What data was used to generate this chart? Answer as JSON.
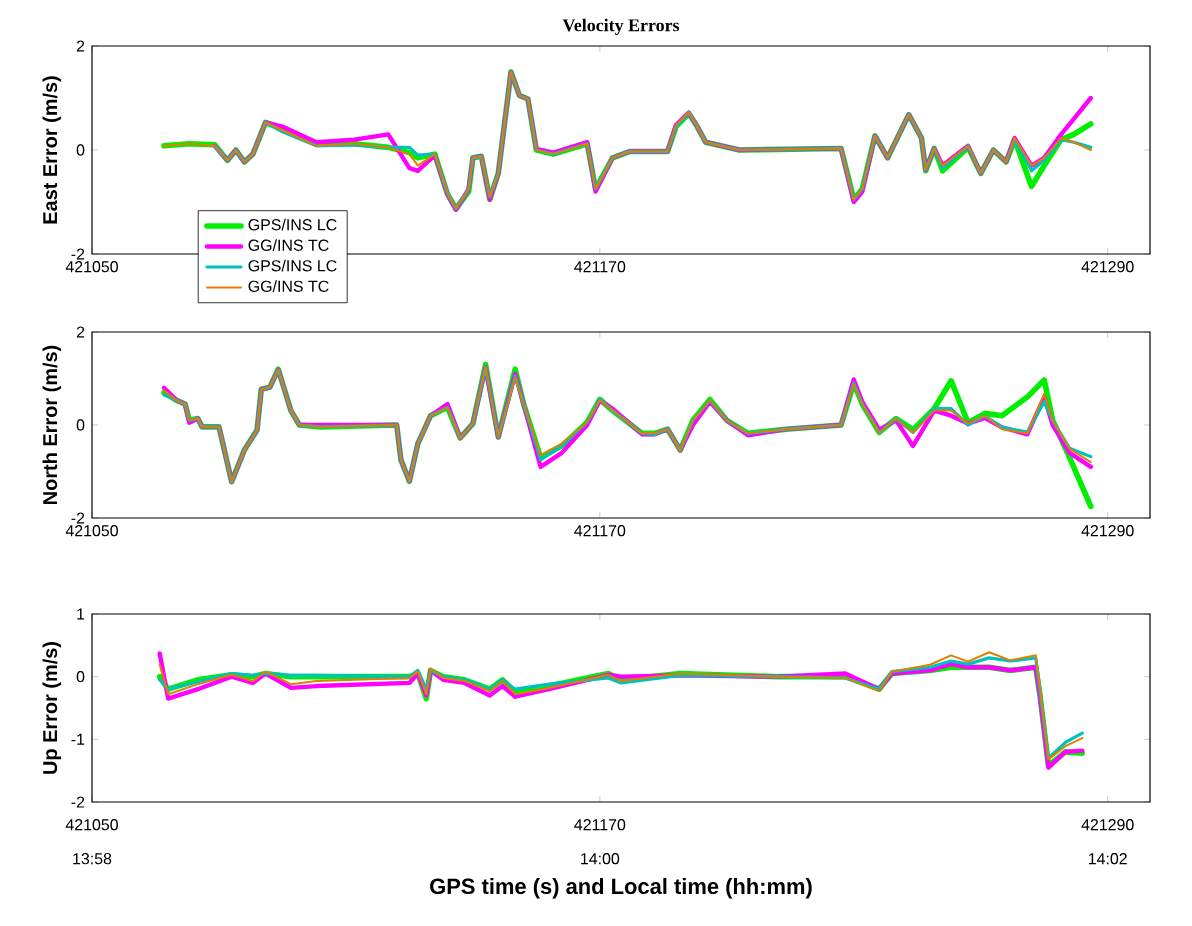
{
  "chart_data": [
    {
      "type": "line",
      "title": "Velocity Errors",
      "ylabel": "East Error (m/s)",
      "xlim": [
        421050,
        421300
      ],
      "ylim": [
        -2,
        2
      ],
      "xticks": [
        421050,
        421170,
        421290
      ],
      "yticks": [
        -2,
        0,
        2
      ],
      "legend": "bottom left",
      "x": [
        421067,
        421073,
        421079,
        421082,
        421084,
        421086,
        421088,
        421091,
        421095,
        421103,
        421112,
        421120,
        421125,
        421127,
        421131,
        421134,
        421136,
        421139,
        421140,
        421142,
        421144,
        421146,
        421149,
        421151,
        421153,
        421155,
        421159,
        421167,
        421169,
        421173,
        421177,
        421186,
        421188,
        421191,
        421193,
        421195,
        421203,
        421227,
        421230,
        421232,
        421235,
        421238,
        421243,
        421246,
        421247,
        421249,
        421251,
        421257,
        421260,
        421263,
        421266,
        421268,
        421272,
        421275,
        421279,
        421282,
        421286
      ],
      "series": [
        {
          "name": "GPS/INS LC",
          "color": "#00ee00",
          "values": [
            0.08,
            0.12,
            0.1,
            -0.2,
            0,
            -0.23,
            -0.08,
            0.53,
            0.4,
            0.12,
            0.12,
            0.05,
            -0.05,
            -0.15,
            -0.08,
            -0.85,
            -1.13,
            -0.8,
            -0.15,
            -0.12,
            -0.95,
            -0.45,
            1.5,
            1.05,
            0.98,
            0,
            -0.08,
            0.12,
            -0.75,
            -0.15,
            -0.03,
            -0.03,
            0.45,
            0.7,
            0.45,
            0.15,
            0,
            0.03,
            -0.95,
            -0.75,
            0.27,
            -0.15,
            0.68,
            0.23,
            -0.4,
            0.03,
            -0.4,
            0.05,
            -0.45,
            0,
            -0.23,
            0.2,
            -0.7,
            -0.3,
            0.2,
            0.3,
            0.5
          ]
        },
        {
          "name": "GG/INS TC",
          "color": "#ff00ff",
          "values": [
            null,
            null,
            0.08,
            -0.2,
            0,
            -0.23,
            -0.08,
            0.53,
            0.45,
            0.15,
            0.2,
            0.3,
            -0.35,
            -0.4,
            -0.1,
            -0.85,
            -1.15,
            -0.75,
            -0.15,
            -0.12,
            -0.95,
            -0.45,
            1.5,
            1.05,
            0.98,
            0.02,
            -0.05,
            0.15,
            -0.8,
            -0.15,
            -0.03,
            -0.03,
            0.48,
            0.72,
            0.45,
            0.15,
            0,
            0.03,
            -1.0,
            -0.8,
            0.27,
            -0.15,
            0.68,
            0.23,
            -0.38,
            0.03,
            -0.3,
            0.08,
            -0.45,
            0,
            -0.23,
            0.23,
            -0.3,
            -0.15,
            0.3,
            0.6,
            1.0
          ]
        },
        {
          "name": "GPS/INS LC",
          "color": "#00c0c0",
          "values": [
            null,
            null,
            0.08,
            -0.2,
            0,
            -0.23,
            -0.08,
            0.53,
            0.35,
            0.08,
            0.1,
            0.05,
            0.05,
            -0.1,
            -0.08,
            -0.83,
            -1.13,
            -0.75,
            -0.15,
            -0.12,
            -0.9,
            -0.45,
            1.5,
            1.05,
            0.98,
            0,
            -0.08,
            0.12,
            -0.75,
            -0.15,
            -0.03,
            -0.03,
            0.45,
            0.72,
            0.45,
            0.15,
            0,
            0.03,
            -0.95,
            -0.75,
            0.27,
            -0.15,
            0.68,
            0.23,
            -0.38,
            0.03,
            -0.35,
            0.08,
            -0.45,
            0,
            -0.23,
            0.2,
            -0.4,
            -0.2,
            0.2,
            0.15,
            0.05
          ]
        },
        {
          "name": "GG/INS TC",
          "color": "#e08000",
          "values": [
            0.08,
            0.12,
            0.08,
            -0.2,
            0,
            -0.23,
            -0.08,
            0.53,
            0.38,
            0.08,
            0.12,
            0.05,
            -0.08,
            -0.3,
            -0.08,
            -0.83,
            -1.13,
            -0.75,
            -0.15,
            -0.12,
            -0.9,
            -0.45,
            1.5,
            1.05,
            0.98,
            0,
            -0.08,
            0.12,
            -0.75,
            -0.15,
            -0.03,
            -0.03,
            0.48,
            0.72,
            0.45,
            0.15,
            0,
            0.03,
            -0.95,
            -0.75,
            0.27,
            -0.15,
            0.68,
            0.23,
            -0.38,
            0.03,
            -0.3,
            0.08,
            -0.45,
            0,
            -0.23,
            0.23,
            -0.3,
            -0.15,
            0.23,
            0.15,
            0
          ]
        }
      ]
    },
    {
      "type": "line",
      "ylabel": "North Error (m/s)",
      "xlim": [
        421050,
        421300
      ],
      "ylim": [
        -2,
        2
      ],
      "xticks": [
        421050,
        421170,
        421290
      ],
      "yticks": [
        -2,
        0,
        2
      ],
      "x": [
        421067,
        421070,
        421072,
        421073,
        421075,
        421076,
        421080,
        421083,
        421086,
        421089,
        421090,
        421092,
        421094,
        421097,
        421099,
        421104,
        421122,
        421123,
        421125,
        421127,
        421130,
        421134,
        421137,
        421140,
        421143,
        421146,
        421150,
        421152,
        421156,
        421161,
        421167,
        421170,
        421173,
        421180,
        421183,
        421186,
        421189,
        421192,
        421196,
        421200,
        421205,
        421214,
        421227,
        421230,
        421232,
        421236,
        421240,
        421244,
        421249,
        421253,
        421257,
        421261,
        421265,
        421271,
        421275,
        421277,
        421281,
        421286
      ],
      "series": [
        {
          "color": "#00ee00",
          "values": [
            0.7,
            0.53,
            0.45,
            0.1,
            0.14,
            -0.04,
            -0.04,
            -1.22,
            -0.54,
            -0.11,
            0.77,
            0.81,
            1.2,
            0.31,
            0,
            -0.04,
            0,
            -0.75,
            -1.21,
            -0.4,
            0.2,
            0.38,
            -0.28,
            0.03,
            1.3,
            -0.26,
            1.2,
            0.45,
            -0.7,
            -0.45,
            0.06,
            0.55,
            0.31,
            -0.18,
            -0.18,
            -0.09,
            -0.54,
            0.1,
            0.55,
            0.1,
            -0.18,
            -0.09,
            0,
            0.9,
            0.45,
            -0.16,
            0.14,
            -0.1,
            0.35,
            0.95,
            0.05,
            0.25,
            0.2,
            0.6,
            0.97,
            0.1,
            -0.7,
            -1.75
          ]
        },
        {
          "color": "#ff00ff",
          "values": [
            0.8,
            0.53,
            0.45,
            0.05,
            0.14,
            -0.04,
            -0.04,
            -1.22,
            -0.54,
            -0.11,
            0.77,
            0.81,
            1.19,
            0.31,
            0,
            0,
            0,
            -0.75,
            -1.21,
            -0.4,
            0.2,
            0.45,
            -0.28,
            0.03,
            1.24,
            -0.26,
            1.1,
            0.45,
            -0.9,
            -0.6,
            0,
            0.53,
            0.35,
            -0.2,
            -0.2,
            -0.09,
            -0.54,
            0,
            0.5,
            0.1,
            -0.22,
            -0.09,
            0,
            0.98,
            0.5,
            -0.1,
            0.1,
            -0.45,
            0.31,
            0.2,
            0.03,
            0.15,
            -0.05,
            -0.2,
            0.6,
            0,
            -0.6,
            -0.9
          ]
        },
        {
          "color": "#00c0c0",
          "values": [
            0.65,
            0.53,
            0.45,
            0.1,
            0.14,
            -0.04,
            -0.04,
            -1.22,
            -0.54,
            -0.11,
            0.77,
            0.81,
            1.19,
            0.31,
            0,
            -0.04,
            0,
            -0.75,
            -1.21,
            -0.4,
            0.2,
            0.38,
            -0.28,
            0.03,
            1.24,
            -0.26,
            1.05,
            0.45,
            -0.75,
            -0.45,
            0.06,
            0.55,
            0.31,
            -0.18,
            -0.2,
            -0.09,
            -0.54,
            0.1,
            0.53,
            0.1,
            -0.18,
            -0.09,
            0,
            0.9,
            0.45,
            -0.16,
            0.14,
            -0.16,
            0.35,
            0.35,
            0,
            0.2,
            -0.05,
            -0.15,
            0.5,
            0.1,
            -0.5,
            -0.68
          ]
        },
        {
          "color": "#e08000",
          "values": [
            0.74,
            0.53,
            0.45,
            0.1,
            0.14,
            -0.04,
            -0.04,
            -1.22,
            -0.54,
            -0.11,
            0.77,
            0.81,
            1.19,
            0.31,
            0,
            -0.04,
            0,
            -0.75,
            -1.21,
            -0.4,
            0.2,
            0.38,
            -0.28,
            0.03,
            1.24,
            -0.26,
            1.02,
            0.45,
            -0.65,
            -0.4,
            0.06,
            0.53,
            0.31,
            -0.18,
            -0.18,
            -0.09,
            -0.54,
            0.1,
            0.53,
            0.1,
            -0.18,
            -0.09,
            0,
            0.88,
            0.45,
            -0.16,
            0.14,
            -0.16,
            0.31,
            0.31,
            0.03,
            0.2,
            -0.09,
            -0.18,
            0.67,
            0.1,
            -0.51,
            -0.8
          ]
        }
      ]
    },
    {
      "type": "line",
      "ylabel": "Up Error (m/s)",
      "xlabel": "GPS time (s) and Local time (hh:mm)",
      "xlim": [
        421050,
        421300
      ],
      "ylim": [
        -2,
        1
      ],
      "yticks": [
        -2,
        -1,
        0,
        1
      ],
      "xticks": [
        421050,
        421170,
        421290
      ],
      "x2lim": [
        13.966667,
        14.036111
      ],
      "x2ticks": [
        {
          "value": 13.966667,
          "label": "13:58"
        },
        {
          "value": 14,
          "label": "14:00"
        },
        {
          "value": 14.033333,
          "label": "14:02"
        }
      ],
      "x": [
        421066,
        421068,
        421075,
        421083,
        421088,
        421091,
        421097,
        421103,
        421125,
        421127,
        421129,
        421130,
        421133,
        421138,
        421144,
        421147,
        421150,
        421158,
        421172,
        421175,
        421189,
        421212,
        421228,
        421236,
        421239,
        421248,
        421253,
        421257,
        421262,
        421267,
        421273,
        421274,
        421276,
        421280,
        421284
      ],
      "series": [
        {
          "color": "#00ee00",
          "values": [
            0,
            -0.2,
            -0.05,
            0.03,
            0,
            0.05,
            0,
            0,
            0,
            0.05,
            -0.35,
            0.1,
            0,
            -0.05,
            -0.2,
            -0.05,
            -0.25,
            -0.15,
            0.05,
            -0.05,
            0.05,
            0,
            0,
            -0.2,
            0.05,
            0.1,
            0.15,
            0.15,
            0.15,
            0.1,
            0.15,
            -0.3,
            -1.42,
            -1.2,
            -1.22
          ]
        },
        {
          "color": "#ff00ff",
          "values": [
            0.37,
            -0.35,
            -0.2,
            0,
            -0.1,
            0.05,
            -0.18,
            -0.15,
            -0.1,
            0.05,
            -0.3,
            0.1,
            -0.05,
            -0.1,
            -0.3,
            -0.15,
            -0.32,
            -0.2,
            0.03,
            0,
            0.02,
            0,
            0.05,
            -0.2,
            0.05,
            0.1,
            0.2,
            0.15,
            0.15,
            0.1,
            0.15,
            -0.3,
            -1.45,
            -1.2,
            -1.18
          ]
        },
        {
          "color": "#00c0c0",
          "values": [
            -0.05,
            -0.2,
            -0.08,
            0.05,
            0.02,
            0.05,
            0.02,
            0.02,
            0,
            0.1,
            -0.2,
            0.1,
            0,
            -0.05,
            -0.2,
            -0.05,
            -0.2,
            -0.12,
            -0.02,
            -0.1,
            0.02,
            0,
            -0.02,
            -0.2,
            0.08,
            0.15,
            0.25,
            0.2,
            0.3,
            0.25,
            0.3,
            -0.2,
            -1.3,
            -1.05,
            -0.9
          ]
        },
        {
          "color": "#e08000",
          "values": [
            0.19,
            -0.28,
            -0.12,
            0.03,
            -0.07,
            0.08,
            -0.12,
            -0.07,
            -0.02,
            0.08,
            -0.28,
            0.13,
            -0.02,
            -0.07,
            -0.23,
            -0.07,
            -0.28,
            -0.18,
            0.03,
            -0.07,
            0.05,
            0,
            -0.02,
            -0.23,
            0.08,
            0.19,
            0.34,
            0.24,
            0.39,
            0.26,
            0.34,
            -0.18,
            -1.32,
            -1.11,
            -0.98
          ]
        }
      ]
    }
  ]
}
